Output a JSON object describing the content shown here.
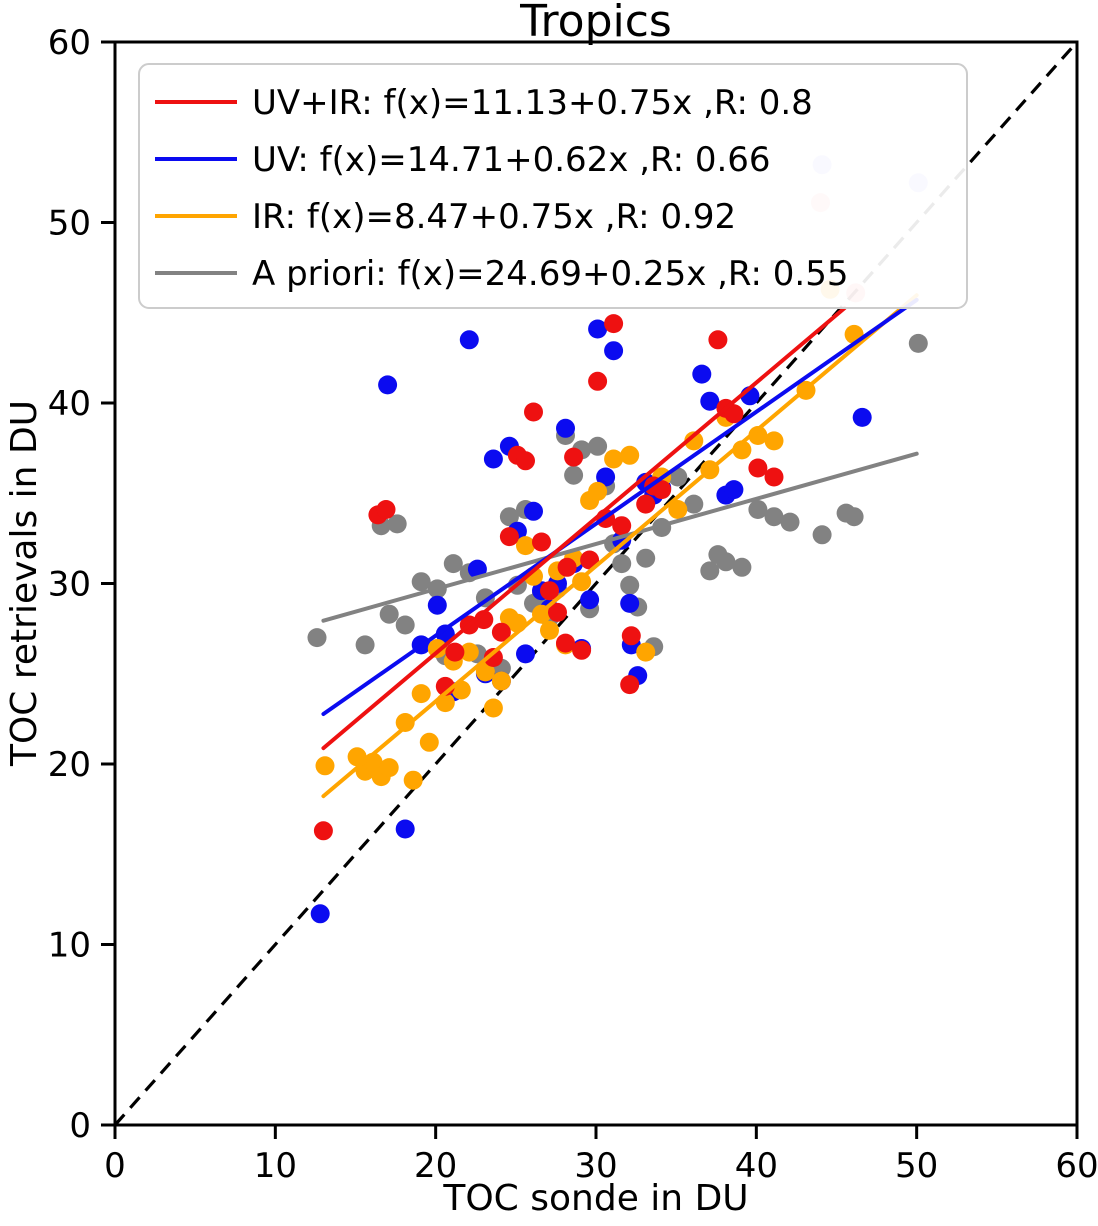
{
  "chart_data": {
    "type": "scatter",
    "title": "Tropics",
    "xlabel": "TOC sonde in DU",
    "ylabel": "TOC retrievals in DU",
    "xlim": [
      0,
      60
    ],
    "ylim": [
      0,
      60
    ],
    "xticks": [
      0,
      10,
      20,
      30,
      40,
      50,
      60
    ],
    "yticks": [
      0,
      10,
      20,
      30,
      40,
      50,
      60
    ],
    "grid": false,
    "legend_position": "upper left",
    "identity_line": {
      "from": [
        0,
        0
      ],
      "to": [
        60,
        60
      ],
      "color": "#000000",
      "style": "dashed"
    },
    "series": [
      {
        "name": "UV+IR",
        "label": "UV+IR: f(x)=11.13+0.75x ,R: 0.8",
        "color": "#ee1111",
        "intercept": 11.13,
        "slope": 0.75,
        "r": 0.8,
        "line_x": [
          13,
          45.5
        ],
        "points": [
          [
            13.0,
            16.3
          ],
          [
            16.4,
            33.8
          ],
          [
            16.9,
            34.1
          ],
          [
            20.6,
            24.3
          ],
          [
            21.2,
            26.2
          ],
          [
            22.1,
            27.7
          ],
          [
            23.0,
            28.0
          ],
          [
            23.6,
            25.9
          ],
          [
            24.1,
            27.3
          ],
          [
            24.6,
            32.6
          ],
          [
            25.1,
            37.1
          ],
          [
            25.6,
            36.8
          ],
          [
            26.1,
            39.5
          ],
          [
            26.6,
            32.3
          ],
          [
            27.1,
            29.6
          ],
          [
            27.6,
            28.4
          ],
          [
            28.1,
            26.7
          ],
          [
            28.2,
            30.9
          ],
          [
            28.6,
            37.0
          ],
          [
            29.1,
            26.3
          ],
          [
            29.6,
            31.3
          ],
          [
            30.1,
            41.2
          ],
          [
            30.6,
            33.6
          ],
          [
            31.1,
            44.4
          ],
          [
            31.6,
            33.2
          ],
          [
            32.1,
            24.4
          ],
          [
            32.2,
            27.1
          ],
          [
            33.1,
            34.4
          ],
          [
            33.6,
            35.4
          ],
          [
            34.1,
            35.2
          ],
          [
            37.6,
            43.5
          ],
          [
            38.1,
            39.7
          ],
          [
            38.6,
            39.4
          ],
          [
            40.1,
            36.4
          ],
          [
            41.1,
            35.9
          ],
          [
            44.0,
            51.1,
            0.35
          ],
          [
            46.2,
            46.1,
            0.45
          ]
        ]
      },
      {
        "name": "UV",
        "label": "UV: f(x)=14.71+0.62x ,R: 0.66",
        "color": "#0b0bf0",
        "intercept": 14.71,
        "slope": 0.62,
        "r": 0.66,
        "line_x": [
          13,
          50
        ],
        "points": [
          [
            12.8,
            11.7
          ],
          [
            18.1,
            16.4
          ],
          [
            17.0,
            41.0
          ],
          [
            19.1,
            26.6
          ],
          [
            20.1,
            28.8
          ],
          [
            20.6,
            27.2
          ],
          [
            21.1,
            24.0
          ],
          [
            22.1,
            43.5
          ],
          [
            22.6,
            30.8
          ],
          [
            23.1,
            25.0
          ],
          [
            23.6,
            36.9
          ],
          [
            24.1,
            24.6
          ],
          [
            24.6,
            37.6
          ],
          [
            25.1,
            32.9
          ],
          [
            25.6,
            26.1
          ],
          [
            26.1,
            34.0
          ],
          [
            26.6,
            29.6
          ],
          [
            27.1,
            28.6
          ],
          [
            27.6,
            30.0
          ],
          [
            28.1,
            38.6
          ],
          [
            28.6,
            31.1
          ],
          [
            29.1,
            26.4
          ],
          [
            29.6,
            29.1
          ],
          [
            30.1,
            44.1
          ],
          [
            30.6,
            35.9
          ],
          [
            31.1,
            42.9
          ],
          [
            31.6,
            32.4
          ],
          [
            32.1,
            28.9
          ],
          [
            32.2,
            26.6
          ],
          [
            32.6,
            24.9
          ],
          [
            33.1,
            35.6
          ],
          [
            33.6,
            34.9
          ],
          [
            34.1,
            35.3
          ],
          [
            36.6,
            41.6
          ],
          [
            37.1,
            40.1
          ],
          [
            38.1,
            34.9
          ],
          [
            38.6,
            35.2
          ],
          [
            39.6,
            40.4
          ],
          [
            46.6,
            39.2
          ],
          [
            44.1,
            53.2,
            0.3
          ],
          [
            50.1,
            52.2,
            0.3
          ]
        ]
      },
      {
        "name": "IR",
        "label": "IR: f(x)=8.47+0.75x ,R: 0.92",
        "color": "#ffa500",
        "intercept": 8.47,
        "slope": 0.75,
        "r": 0.92,
        "line_x": [
          13,
          50
        ],
        "points": [
          [
            13.1,
            19.9
          ],
          [
            15.1,
            20.4
          ],
          [
            15.6,
            19.6
          ],
          [
            16.1,
            20.1
          ],
          [
            16.6,
            19.3
          ],
          [
            17.1,
            19.8
          ],
          [
            18.1,
            22.3
          ],
          [
            18.6,
            19.1
          ],
          [
            19.1,
            23.9
          ],
          [
            19.6,
            21.2
          ],
          [
            20.1,
            26.4
          ],
          [
            20.6,
            23.4
          ],
          [
            21.1,
            25.7
          ],
          [
            21.6,
            24.1
          ],
          [
            22.1,
            26.2
          ],
          [
            23.1,
            25.1
          ],
          [
            23.6,
            23.1
          ],
          [
            24.1,
            24.6
          ],
          [
            24.6,
            28.1
          ],
          [
            25.1,
            27.8
          ],
          [
            25.6,
            32.1
          ],
          [
            26.1,
            30.4
          ],
          [
            26.6,
            28.3
          ],
          [
            27.1,
            27.4
          ],
          [
            27.6,
            30.7
          ],
          [
            28.1,
            26.6
          ],
          [
            28.6,
            31.4
          ],
          [
            29.1,
            30.1
          ],
          [
            29.6,
            34.6
          ],
          [
            30.1,
            35.1
          ],
          [
            31.1,
            36.9
          ],
          [
            32.1,
            37.1
          ],
          [
            33.1,
            26.2
          ],
          [
            34.1,
            35.9
          ],
          [
            35.1,
            34.1
          ],
          [
            36.1,
            37.9
          ],
          [
            37.1,
            36.3
          ],
          [
            38.1,
            39.2
          ],
          [
            39.1,
            37.4
          ],
          [
            40.1,
            38.2
          ],
          [
            41.1,
            37.9
          ],
          [
            43.1,
            40.7
          ],
          [
            44.6,
            46.3
          ],
          [
            46.1,
            43.8
          ]
        ]
      },
      {
        "name": "A priori",
        "label": "A priori: f(x)=24.69+0.25x ,R: 0.55",
        "color": "#828282",
        "intercept": 24.69,
        "slope": 0.25,
        "r": 0.55,
        "line_x": [
          13,
          50
        ],
        "points": [
          [
            12.6,
            27.0
          ],
          [
            15.6,
            26.6
          ],
          [
            16.6,
            33.2
          ],
          [
            17.1,
            28.3
          ],
          [
            17.6,
            33.3
          ],
          [
            18.1,
            27.7
          ],
          [
            19.1,
            30.1
          ],
          [
            20.1,
            29.7
          ],
          [
            20.6,
            26.0
          ],
          [
            21.1,
            31.1
          ],
          [
            22.1,
            30.6
          ],
          [
            22.6,
            26.1
          ],
          [
            23.1,
            29.2
          ],
          [
            24.1,
            25.3
          ],
          [
            24.6,
            33.7
          ],
          [
            25.1,
            29.9
          ],
          [
            25.6,
            34.1
          ],
          [
            26.1,
            28.9
          ],
          [
            26.6,
            29.4
          ],
          [
            27.1,
            28.1
          ],
          [
            27.6,
            29.7
          ],
          [
            28.1,
            38.2
          ],
          [
            28.6,
            36.0
          ],
          [
            29.1,
            37.4
          ],
          [
            29.6,
            28.6
          ],
          [
            30.1,
            37.6
          ],
          [
            30.6,
            35.4
          ],
          [
            31.1,
            32.2
          ],
          [
            31.6,
            31.1
          ],
          [
            32.1,
            29.9
          ],
          [
            32.6,
            28.7
          ],
          [
            33.1,
            31.4
          ],
          [
            33.6,
            26.5
          ],
          [
            34.1,
            33.1
          ],
          [
            35.1,
            35.9
          ],
          [
            36.1,
            34.4
          ],
          [
            37.1,
            30.7
          ],
          [
            37.6,
            31.6
          ],
          [
            38.1,
            31.2
          ],
          [
            39.1,
            30.9
          ],
          [
            40.1,
            34.1
          ],
          [
            41.1,
            33.7
          ],
          [
            42.1,
            33.4
          ],
          [
            44.1,
            32.7
          ],
          [
            45.6,
            33.9
          ],
          [
            46.1,
            33.7
          ],
          [
            50.1,
            43.3
          ]
        ]
      }
    ]
  }
}
